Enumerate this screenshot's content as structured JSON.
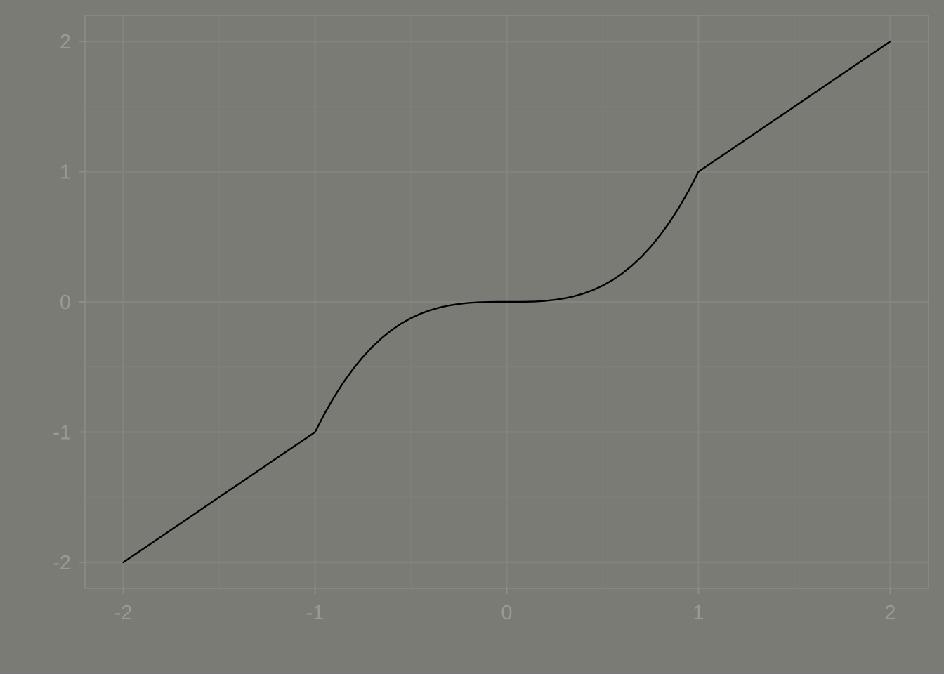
{
  "chart_data": {
    "type": "line",
    "title": "",
    "xlabel": "",
    "ylabel": "",
    "xlim": [
      -2.2,
      2.2
    ],
    "ylim": [
      -2.2,
      2.2
    ],
    "x_ticks": [
      -2,
      -1,
      0,
      1,
      2
    ],
    "y_ticks": [
      -2,
      -1,
      0,
      1,
      2
    ],
    "x_tick_labels": [
      "-2",
      "-1",
      "0",
      "1",
      "2"
    ],
    "y_tick_labels": [
      "-2",
      "-1",
      "0",
      "1",
      "2"
    ],
    "x_minor_ticks": [
      -1.5,
      -0.5,
      0.5,
      1.5
    ],
    "y_minor_ticks": [
      -1.5,
      -0.5,
      0.5,
      1.5
    ],
    "grid": true,
    "legend": "none",
    "colors": {
      "background": "#7a7b75",
      "line": "#000000"
    },
    "series": [
      {
        "x": [
          -2,
          -1.9,
          -1.8,
          -1.7,
          -1.6,
          -1.5,
          -1.4,
          -1.3,
          -1.2,
          -1.1,
          -1,
          -0.95,
          -0.9,
          -0.85,
          -0.8,
          -0.75,
          -0.7,
          -0.65,
          -0.6,
          -0.55,
          -0.5,
          -0.45,
          -0.4,
          -0.35,
          -0.3,
          -0.25,
          -0.2,
          -0.15,
          -0.1,
          -0.05,
          0,
          0.05,
          0.1,
          0.15,
          0.2,
          0.25,
          0.3,
          0.35,
          0.4,
          0.45,
          0.5,
          0.55,
          0.6,
          0.65,
          0.7,
          0.75,
          0.8,
          0.85,
          0.9,
          0.95,
          1,
          1.1,
          1.2,
          1.3,
          1.4,
          1.5,
          1.6,
          1.7,
          1.8,
          1.9,
          2
        ],
        "y": [
          -2,
          -1.9,
          -1.8,
          -1.7,
          -1.6,
          -1.5,
          -1.4,
          -1.3,
          -1.2,
          -1.1,
          -1,
          -0.857,
          -0.729,
          -0.614,
          -0.512,
          -0.422,
          -0.343,
          -0.275,
          -0.216,
          -0.166,
          -0.125,
          -0.091,
          -0.064,
          -0.043,
          -0.027,
          -0.016,
          -0.008,
          -0.003,
          -0.001,
          0,
          0,
          0,
          0.001,
          0.003,
          0.008,
          0.016,
          0.027,
          0.043,
          0.064,
          0.091,
          0.125,
          0.166,
          0.216,
          0.275,
          0.343,
          0.422,
          0.512,
          0.614,
          0.729,
          0.857,
          1,
          1.1,
          1.2,
          1.3,
          1.4,
          1.5,
          1.6,
          1.7,
          1.8,
          1.9,
          2
        ]
      }
    ]
  }
}
